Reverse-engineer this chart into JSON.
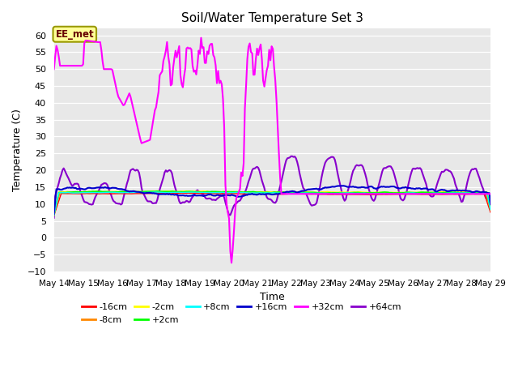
{
  "title": "Soil/Water Temperature Set 3",
  "xlabel": "Time",
  "ylabel": "Temperature (C)",
  "ylim": [
    -10,
    62
  ],
  "yticks": [
    -10,
    -5,
    0,
    5,
    10,
    15,
    20,
    25,
    30,
    35,
    40,
    45,
    50,
    55,
    60
  ],
  "xstart": 14,
  "xend": 29,
  "xtick_labels": [
    "May 14",
    "May 15",
    "May 16",
    "May 17",
    "May 18",
    "May 19",
    "May 20",
    "May 21",
    "May 22",
    "May 23",
    "May 24",
    "May 25",
    "May 26",
    "May 27",
    "May 28",
    "May 29"
  ],
  "bg_color": "#e8e8e8",
  "fig_color": "#ffffff",
  "legend_label": "EE_met",
  "legend_box_color": "#ffff99",
  "legend_box_border": "#999900",
  "series_colors": {
    "-16cm": "#ff0000",
    "-8cm": "#ff8800",
    "-2cm": "#ffff00",
    "+2cm": "#00ff00",
    "+8cm": "#00ffff",
    "+16cm": "#0000cc",
    "+32cm": "#ff00ff",
    "+64cm": "#8800cc"
  },
  "series_linewidths": {
    "-16cm": 1.0,
    "-8cm": 1.0,
    "-2cm": 1.0,
    "+2cm": 1.2,
    "+8cm": 1.0,
    "+16cm": 1.5,
    "+32cm": 1.5,
    "+64cm": 1.5
  }
}
